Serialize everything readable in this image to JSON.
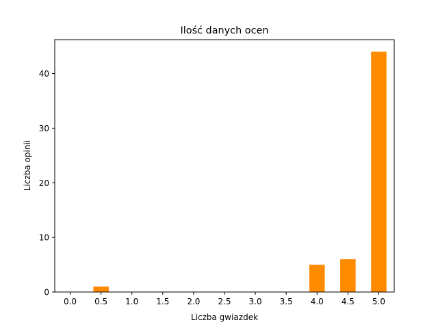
{
  "chart_data": {
    "type": "bar",
    "title": "Ilość danych ocen",
    "xlabel": "Liczba gwiazdek",
    "ylabel": "Liczba opinii",
    "x": [
      0.5,
      4.0,
      4.5,
      5.0
    ],
    "values": [
      1,
      5,
      6,
      44
    ],
    "xlim": [
      -0.25,
      5.25
    ],
    "ylim": [
      0,
      46.2
    ],
    "xticks": [
      0.0,
      0.5,
      1.0,
      1.5,
      2.0,
      2.5,
      3.0,
      3.5,
      4.0,
      4.5,
      5.0
    ],
    "xtick_labels": [
      "0.0",
      "0.5",
      "1.0",
      "1.5",
      "2.0",
      "2.5",
      "3.0",
      "3.5",
      "4.0",
      "4.5",
      "5.0"
    ],
    "yticks": [
      0,
      10,
      20,
      30,
      40
    ],
    "ytick_labels": [
      "0",
      "10",
      "20",
      "30",
      "40"
    ],
    "bar_width": 0.25,
    "bar_color": "#ff8c00",
    "grid": false,
    "legend": "none"
  }
}
